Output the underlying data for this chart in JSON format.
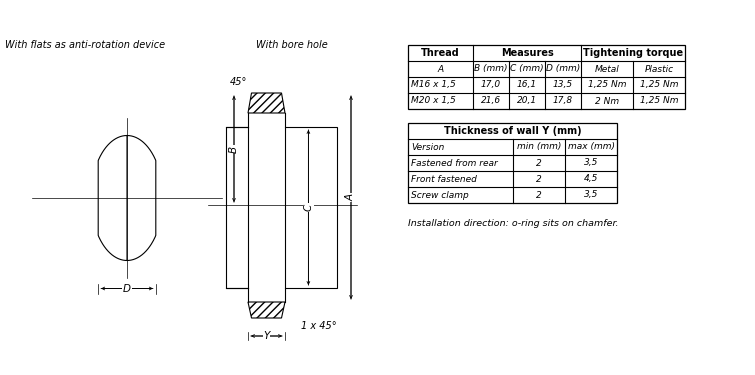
{
  "bg_color": "#ffffff",
  "label_left": "With flats as anti-rotation device",
  "label_right": "With bore hole",
  "table1_col_headers": [
    "A",
    "B (mm)",
    "C (mm)",
    "D (mm)",
    "Metal",
    "Plastic"
  ],
  "table1_rows": [
    [
      "M16 x 1,5",
      "17,0",
      "16,1",
      "13,5",
      "1,25 Nm",
      "1,25 Nm"
    ],
    [
      "M20 x 1,5",
      "21,6",
      "20,1",
      "17,8",
      "2 Nm",
      "1,25 Nm"
    ]
  ],
  "table2_title": "Thickness of wall Y (mm)",
  "table2_col_headers": [
    "Version",
    "min (mm)",
    "max (mm)"
  ],
  "table2_rows": [
    [
      "Fastened from rear",
      "2",
      "3,5"
    ],
    [
      "Front fastened",
      "2",
      "4,5"
    ],
    [
      "Screw clamp",
      "2",
      "3,5"
    ]
  ],
  "install_note": "Installation direction: o-ring sits on chamfer.",
  "angle_label": "45°",
  "dim_B": "B",
  "dim_C": "C",
  "dim_A": "A",
  "dim_D": "D",
  "dim_Y": "Y",
  "chamfer_label": "1 x 45°",
  "t1_thread": "Thread",
  "t1_measures": "Measures",
  "t1_torque": "Tightening torque"
}
